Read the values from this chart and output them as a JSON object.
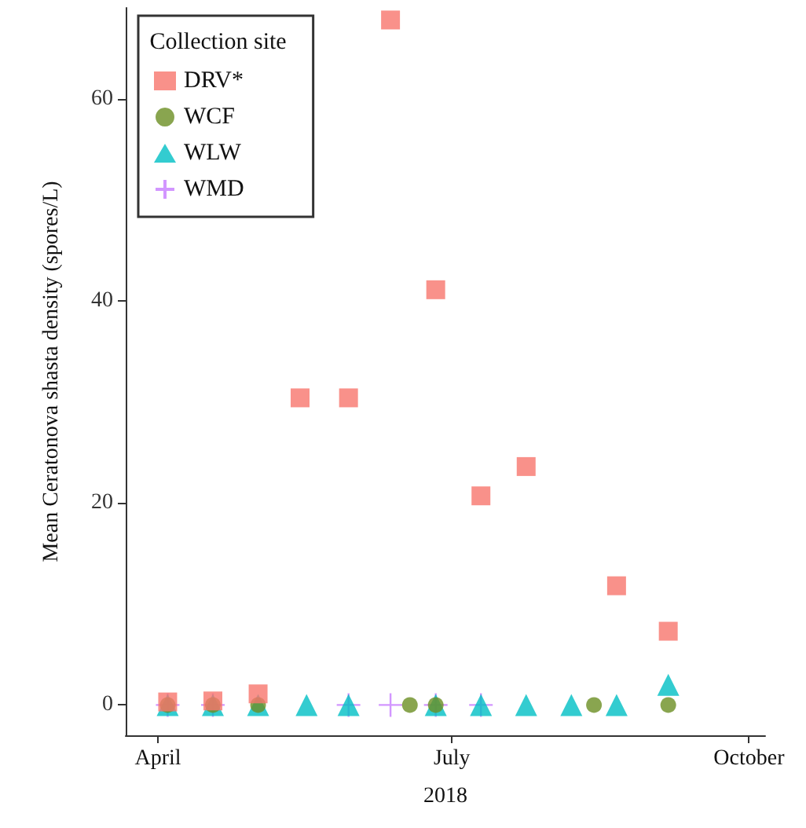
{
  "chart_data": {
    "type": "scatter",
    "xlabel": "2018",
    "ylabel": "Mean Ceratonova shasta density (spores/L)",
    "legend_title": "Collection site",
    "legend": "top left",
    "grid": false,
    "xlim": [
      "2018-03-22",
      "2018-10-06"
    ],
    "xticks": [
      {
        "value": "2018-04-01",
        "label": "April"
      },
      {
        "value": "2018-07-01",
        "label": "July"
      },
      {
        "value": "2018-10-01",
        "label": "October"
      }
    ],
    "ylim": [
      -3,
      69
    ],
    "yticks": [
      0,
      20,
      40,
      60
    ],
    "series": [
      {
        "name": "DRV*",
        "color": "#f8766d",
        "marker": "square",
        "x": [
          "2018-04-04",
          "2018-04-18",
          "2018-05-02",
          "2018-05-15",
          "2018-05-30",
          "2018-06-12",
          "2018-06-26",
          "2018-07-10",
          "2018-07-24",
          "2018-08-21",
          "2018-09-06"
        ],
        "values": [
          0.3,
          0.4,
          1.1,
          30.4,
          30.4,
          67.8,
          41.1,
          20.7,
          23.6,
          11.8,
          7.3
        ]
      },
      {
        "name": "WCF",
        "color": "#6b8e23",
        "marker": "circle",
        "x": [
          "2018-04-04",
          "2018-04-18",
          "2018-05-02",
          "2018-06-18",
          "2018-06-26",
          "2018-08-14",
          "2018-09-06"
        ],
        "values": [
          0,
          0,
          0,
          0,
          0,
          0,
          0
        ]
      },
      {
        "name": "WLW",
        "color": "#00bfc4",
        "marker": "triangle",
        "x": [
          "2018-04-04",
          "2018-04-18",
          "2018-05-02",
          "2018-05-17",
          "2018-05-30",
          "2018-06-26",
          "2018-07-10",
          "2018-07-24",
          "2018-08-07",
          "2018-08-21",
          "2018-09-06"
        ],
        "values": [
          0,
          0,
          0,
          0,
          0,
          0,
          0,
          0,
          0,
          0,
          2.0
        ]
      },
      {
        "name": "WMD",
        "color": "#c77cff",
        "marker": "cross",
        "x": [
          "2018-04-04",
          "2018-04-18",
          "2018-05-30",
          "2018-06-12",
          "2018-06-26",
          "2018-07-10"
        ],
        "values": [
          0,
          0,
          0,
          0,
          0,
          0
        ]
      }
    ]
  }
}
